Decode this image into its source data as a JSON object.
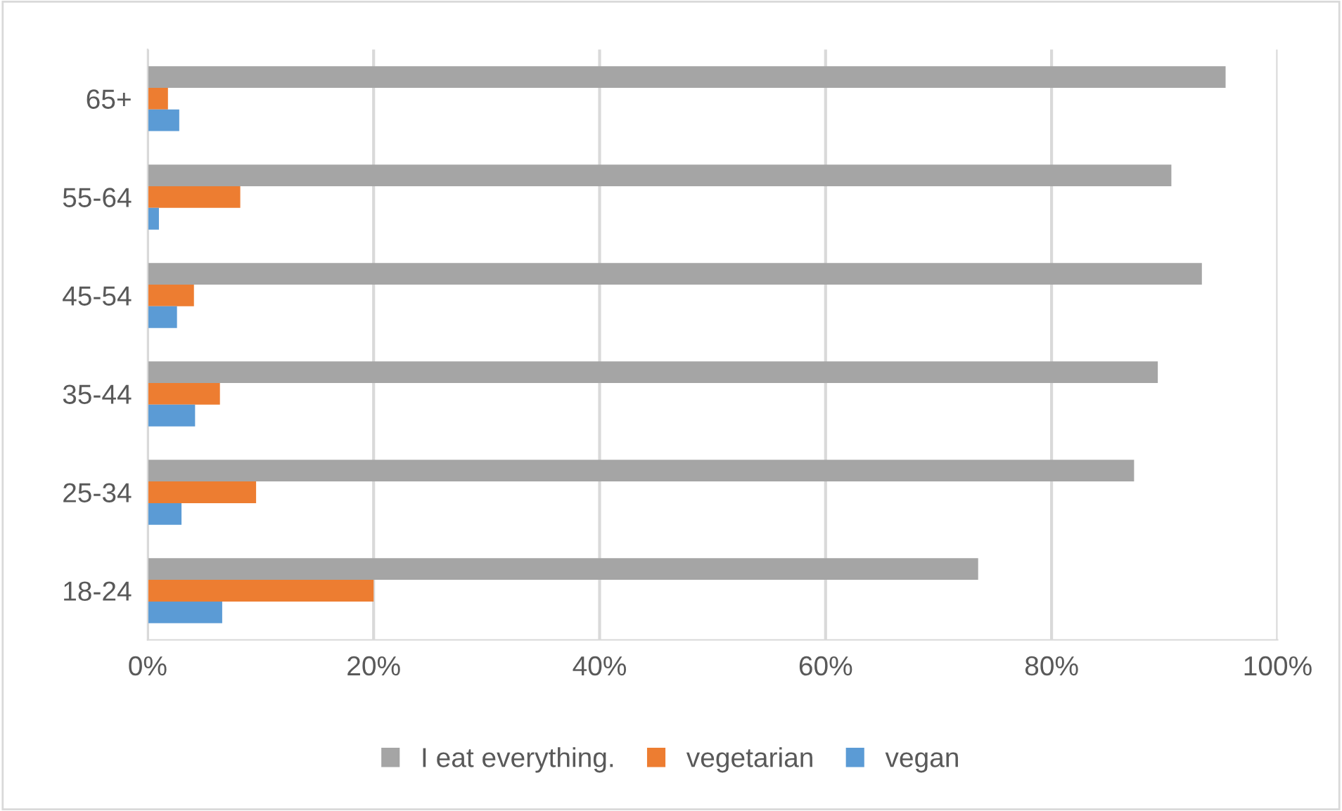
{
  "chart_data": {
    "type": "bar",
    "orientation": "horizontal",
    "categories": [
      "65+",
      "55-64",
      "45-54",
      "35-44",
      "25-34",
      "18-24"
    ],
    "series": [
      {
        "name": "I eat everything.",
        "color": "#a5a5a5",
        "values": [
          95.4,
          90.6,
          93.3,
          89.4,
          87.3,
          73.5
        ]
      },
      {
        "name": "vegetarian",
        "color": "#ed7d31",
        "values": [
          1.8,
          8.2,
          4.1,
          6.4,
          9.6,
          20.0
        ]
      },
      {
        "name": "vegan",
        "color": "#5b9bd5",
        "values": [
          2.8,
          1.0,
          2.6,
          4.2,
          3.0,
          6.6
        ]
      }
    ],
    "xlim": [
      0,
      100
    ],
    "xticks": [
      {
        "value": 0,
        "label": "0%"
      },
      {
        "value": 20,
        "label": "20%"
      },
      {
        "value": 40,
        "label": "40%"
      },
      {
        "value": 60,
        "label": "60%"
      },
      {
        "value": 80,
        "label": "80%"
      },
      {
        "value": 100,
        "label": "100%"
      }
    ],
    "grid": "x",
    "legend": "bottom"
  }
}
